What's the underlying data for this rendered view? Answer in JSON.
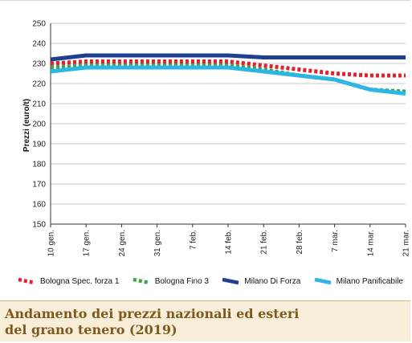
{
  "chart_data": {
    "type": "line",
    "title": "",
    "xlabel": "",
    "ylabel": "Prezzi (euro/t)",
    "ylim": [
      150,
      250
    ],
    "yticks": [
      150,
      160,
      170,
      180,
      190,
      200,
      210,
      220,
      230,
      240,
      250
    ],
    "categories": [
      "10 gen.",
      "17 gen.",
      "24 gen.",
      "31 gen.",
      "7 feb.",
      "14 feb.",
      "21 feb.",
      "28 feb.",
      "7 mar.",
      "14 mar.",
      "21 mar."
    ],
    "grid": "horizontal",
    "legend_position": "bottom",
    "series": [
      {
        "name": "Bologna Spec. forza 1",
        "color": "#e3202c",
        "style": "dotted",
        "values": [
          230,
          231,
          231,
          231,
          231,
          231,
          229,
          227,
          225,
          224,
          224
        ]
      },
      {
        "name": "Bologna Fino 3",
        "color": "#3aa64a",
        "style": "dotted",
        "values": [
          228,
          229,
          229,
          229,
          229,
          229,
          227,
          224,
          222,
          217,
          216
        ]
      },
      {
        "name": "Milano Di Forza",
        "color": "#1f3f8f",
        "style": "solid",
        "values": [
          232,
          234,
          234,
          234,
          234,
          234,
          233,
          233,
          233,
          233,
          233
        ]
      },
      {
        "name": "Milano Panificabile",
        "color": "#2cb6e4",
        "style": "solid",
        "values": [
          226,
          228,
          228,
          228,
          228,
          228,
          226,
          224,
          222,
          217,
          215
        ]
      }
    ]
  },
  "caption": {
    "title": "Andamento dei prezzi nazionali ed esteri\ndel grano tenero (2019)"
  }
}
